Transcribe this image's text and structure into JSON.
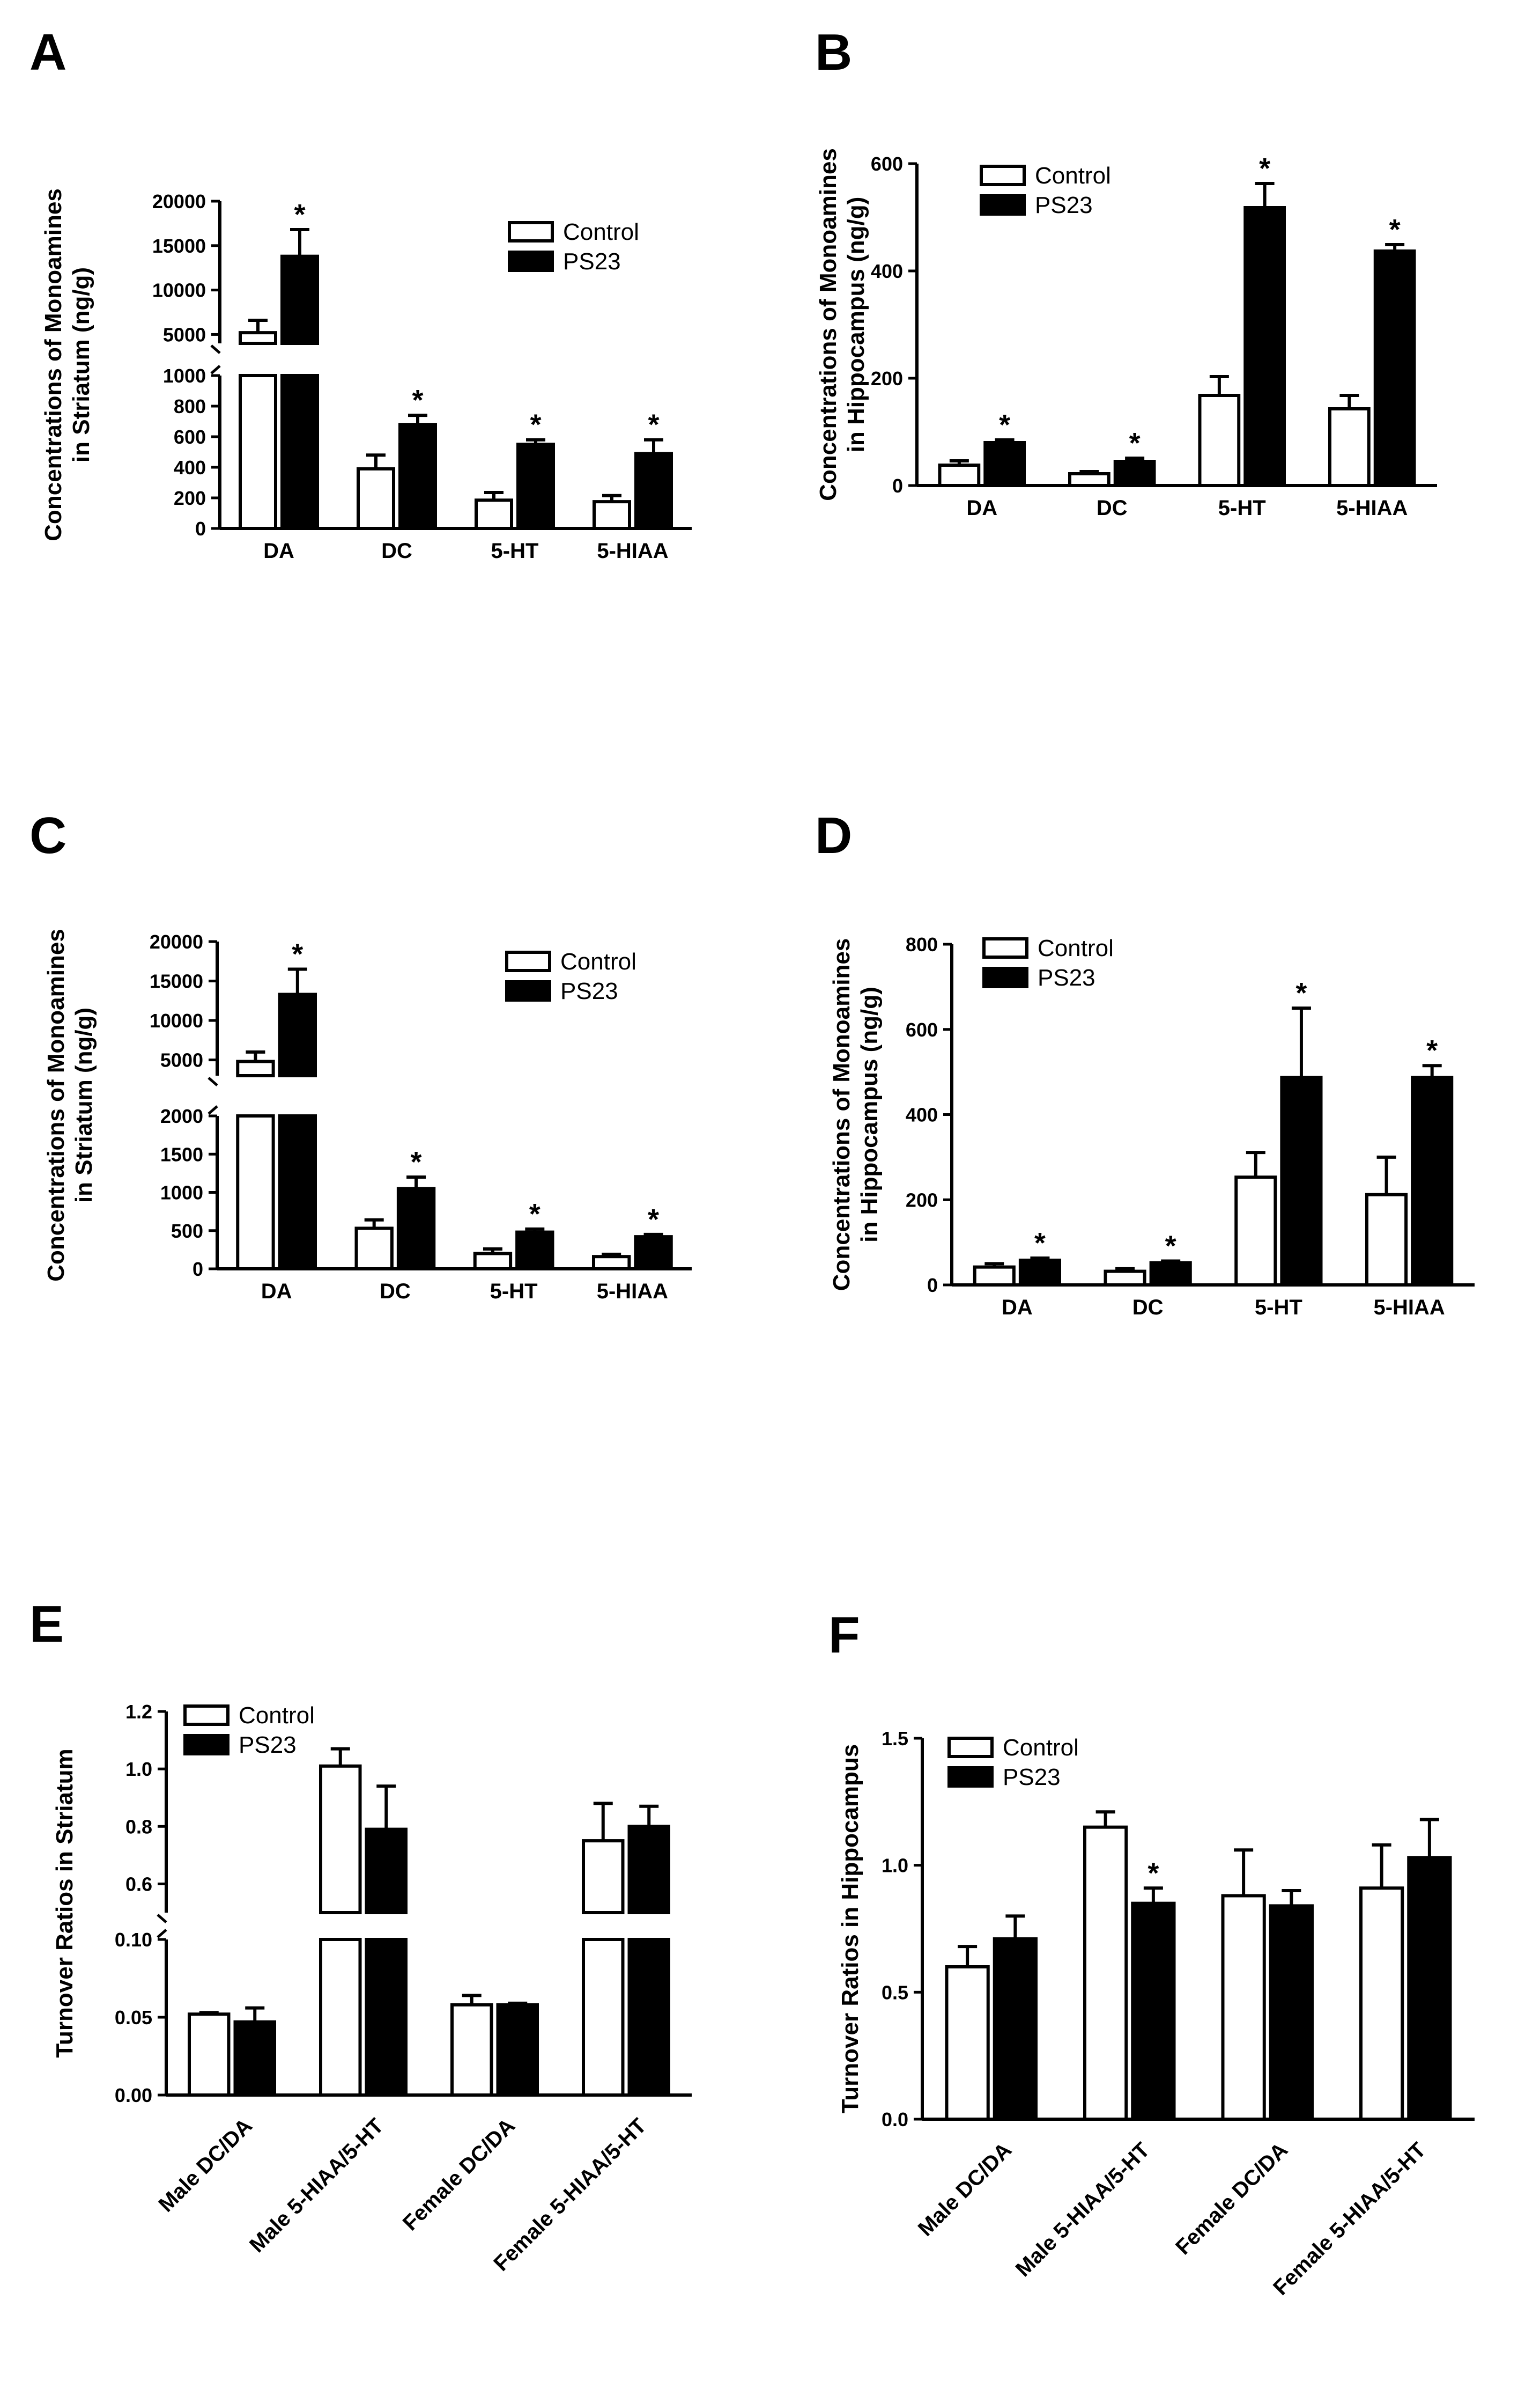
{
  "figure": {
    "panels": [
      {
        "id": "A",
        "letter": "A"
      },
      {
        "id": "B",
        "letter": "B"
      },
      {
        "id": "C",
        "letter": "C"
      },
      {
        "id": "D",
        "letter": "D"
      },
      {
        "id": "E",
        "letter": "E"
      },
      {
        "id": "F",
        "letter": "F"
      }
    ]
  },
  "chart_data": [
    {
      "panel": "A",
      "type": "bar",
      "ylabel_lines": [
        "Concentrations of Monoamines",
        "in Striatum (ng/g)"
      ],
      "categories": [
        "DA",
        "DC",
        "5-HT",
        "5-HIAA"
      ],
      "y_axis_break": true,
      "lower_segment": {
        "ylim": [
          0,
          1000
        ],
        "ticks": [
          0,
          200,
          400,
          600,
          800,
          1000
        ],
        "tick_labels": [
          "0",
          "200",
          "400",
          "600",
          "800",
          "1000"
        ]
      },
      "upper_segment": {
        "ylim": [
          4000,
          20000
        ],
        "ticks": [
          5000,
          10000,
          15000,
          20000
        ],
        "tick_labels": [
          "5000",
          "10000",
          "15000",
          "20000"
        ]
      },
      "legend": [
        "Control",
        "PS23"
      ],
      "series": [
        {
          "name": "Control",
          "color": "#ffffff",
          "values": [
            5200,
            390,
            185,
            175
          ],
          "errors": [
            1400,
            90,
            50,
            40
          ]
        },
        {
          "name": "PS23",
          "color": "#000000",
          "values": [
            13800,
            680,
            550,
            490
          ],
          "errors": [
            3000,
            60,
            30,
            90
          ]
        }
      ],
      "significance": [
        "*",
        "*",
        "*",
        "*"
      ]
    },
    {
      "panel": "B",
      "type": "bar",
      "ylabel_lines": [
        "Concentrations of Monoamines",
        "in Hippocampus (ng/g)"
      ],
      "categories": [
        "DA",
        "DC",
        "5-HT",
        "5-HIAA"
      ],
      "ylim": [
        0,
        600
      ],
      "ticks": [
        0,
        200,
        400,
        600
      ],
      "tick_labels": [
        "0",
        "200",
        "400",
        "600"
      ],
      "legend": [
        "Control",
        "PS23"
      ],
      "series": [
        {
          "name": "Control",
          "color": "#ffffff",
          "values": [
            38,
            22,
            168,
            143
          ],
          "errors": [
            8,
            4,
            35,
            25
          ]
        },
        {
          "name": "PS23",
          "color": "#000000",
          "values": [
            80,
            45,
            518,
            437
          ],
          "errors": [
            5,
            6,
            45,
            12
          ]
        }
      ],
      "significance": [
        "*",
        "*",
        "*",
        "*"
      ]
    },
    {
      "panel": "C",
      "type": "bar",
      "ylabel_lines": [
        "Concentrations of Monoamines",
        "in Striatum (ng/g)"
      ],
      "categories": [
        "DA",
        "DC",
        "5-HT",
        "5-HIAA"
      ],
      "y_axis_break": true,
      "lower_segment": {
        "ylim": [
          0,
          2000
        ],
        "ticks": [
          0,
          500,
          1000,
          1500,
          2000
        ],
        "tick_labels": [
          "0",
          "500",
          "1000",
          "1500",
          "2000"
        ]
      },
      "upper_segment": {
        "ylim": [
          3000,
          20000
        ],
        "ticks": [
          5000,
          10000,
          15000,
          20000
        ],
        "tick_labels": [
          "5000",
          "10000",
          "15000",
          "20000"
        ]
      },
      "legend": [
        "Control",
        "PS23"
      ],
      "series": [
        {
          "name": "Control",
          "color": "#ffffff",
          "values": [
            4800,
            530,
            200,
            160
          ],
          "errors": [
            1200,
            110,
            60,
            30
          ]
        },
        {
          "name": "PS23",
          "color": "#000000",
          "values": [
            13300,
            1050,
            480,
            420
          ],
          "errors": [
            3200,
            150,
            40,
            30
          ]
        }
      ],
      "significance": [
        "*",
        "*",
        "*",
        "*"
      ]
    },
    {
      "panel": "D",
      "type": "bar",
      "ylabel_lines": [
        "Concentrations of Monoamines",
        "in Hippocampus (ng/g)"
      ],
      "categories": [
        "DA",
        "DC",
        "5-HT",
        "5-HIAA"
      ],
      "ylim": [
        0,
        800
      ],
      "ticks": [
        0,
        200,
        400,
        600,
        800
      ],
      "tick_labels": [
        "0",
        "200",
        "400",
        "600",
        "800"
      ],
      "legend": [
        "Control",
        "PS23"
      ],
      "series": [
        {
          "name": "Control",
          "color": "#ffffff",
          "values": [
            42,
            32,
            253,
            212
          ],
          "errors": [
            8,
            6,
            58,
            88
          ]
        },
        {
          "name": "PS23",
          "color": "#000000",
          "values": [
            58,
            52,
            487,
            487
          ],
          "errors": [
            5,
            4,
            163,
            28
          ]
        }
      ],
      "significance": [
        "*",
        "*",
        "*",
        "*"
      ]
    },
    {
      "panel": "E",
      "type": "bar",
      "ylabel_lines": [
        "Turnover Ratios in Striatum"
      ],
      "categories": [
        "Male DC/DA",
        "Male 5-HIAA/5-HT",
        "Female DC/DA",
        "Female 5-HIAA/5-HT"
      ],
      "y_axis_break": true,
      "lower_segment": {
        "ylim": [
          0,
          0.1
        ],
        "ticks": [
          0,
          0.05,
          0.1
        ],
        "tick_labels": [
          "0.00",
          "0.05",
          "0.10"
        ]
      },
      "upper_segment": {
        "ylim": [
          0.5,
          1.2
        ],
        "ticks": [
          0.6,
          0.8,
          1.0,
          1.2
        ],
        "tick_labels": [
          "0.6",
          "0.8",
          "1.0",
          "1.2"
        ]
      },
      "legend": [
        "Control",
        "PS23"
      ],
      "series": [
        {
          "name": "Control",
          "color": "#ffffff",
          "values": [
            0.052,
            1.01,
            0.058,
            0.75
          ],
          "errors": [
            0.001,
            0.06,
            0.006,
            0.13
          ]
        },
        {
          "name": "PS23",
          "color": "#000000",
          "values": [
            0.047,
            0.79,
            0.058,
            0.8
          ],
          "errors": [
            0.009,
            0.15,
            0.001,
            0.07
          ]
        }
      ],
      "significance": [
        "",
        "",
        "",
        ""
      ]
    },
    {
      "panel": "F",
      "type": "bar",
      "ylabel_lines": [
        "Turnover Ratios in Hippocampus"
      ],
      "categories": [
        "Male DC/DA",
        "Male 5-HIAA/5-HT",
        "Female DC/DA",
        "Female 5-HIAA/5-HT"
      ],
      "ylim": [
        0,
        1.5
      ],
      "ticks": [
        0,
        0.5,
        1.0,
        1.5
      ],
      "tick_labels": [
        "0.0",
        "0.5",
        "1.0",
        "1.5"
      ],
      "legend": [
        "Control",
        "PS23"
      ],
      "series": [
        {
          "name": "Control",
          "color": "#ffffff",
          "values": [
            0.6,
            1.15,
            0.88,
            0.91
          ],
          "errors": [
            0.08,
            0.06,
            0.18,
            0.17
          ]
        },
        {
          "name": "PS23",
          "color": "#000000",
          "values": [
            0.71,
            0.85,
            0.84,
            1.03
          ],
          "errors": [
            0.09,
            0.06,
            0.06,
            0.15
          ]
        }
      ],
      "significance": [
        "",
        "*",
        "",
        ""
      ]
    }
  ]
}
